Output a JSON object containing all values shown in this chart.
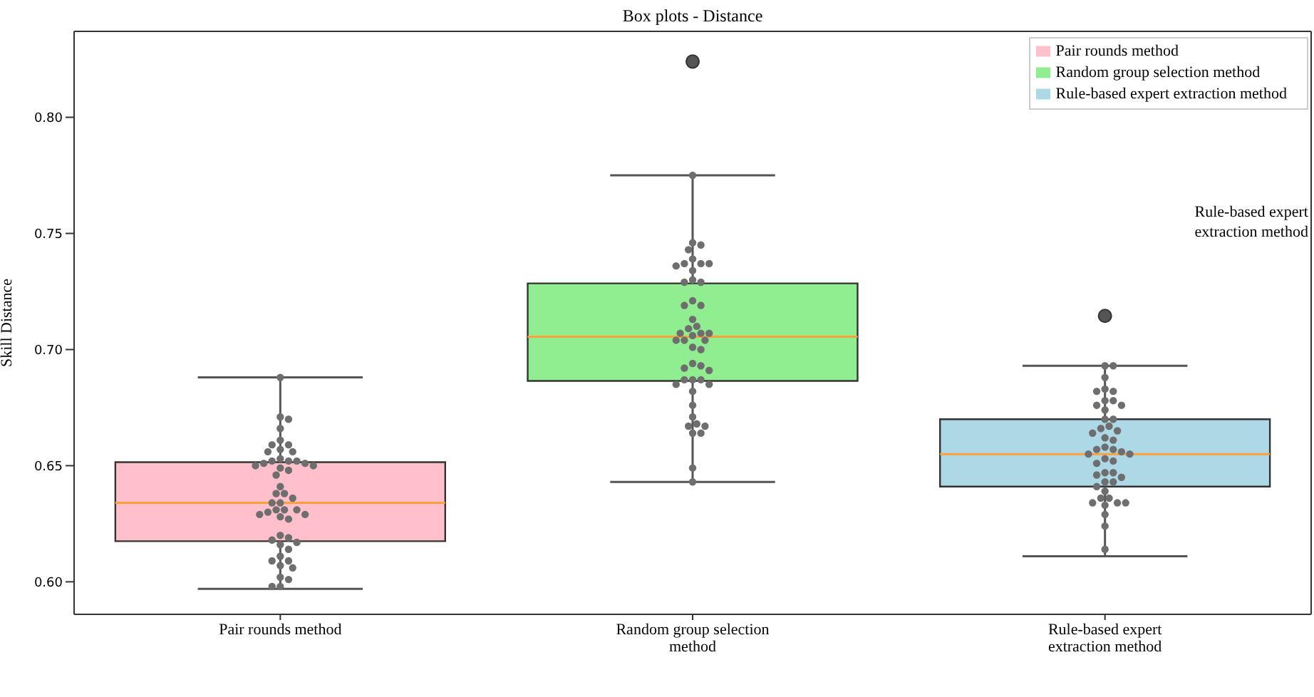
{
  "chart_data": {
    "type": "box",
    "title": "Box plots - Distance",
    "ylabel": "Skill Distance",
    "categories": [
      "Pair rounds method",
      "Random group selection method",
      "Rule-based expert extraction method"
    ],
    "series": [
      {
        "type": "box",
        "name": "Pair rounds method",
        "color": "#ffc0cb",
        "boxes": [
          {
            "low": 0.597,
            "q1": 0.6175,
            "median": 0.634,
            "q3": 0.6515,
            "high": 0.688
          },
          null,
          null
        ]
      },
      {
        "type": "box",
        "name": "Random group selection method",
        "color": "#90ee90",
        "boxes": [
          null,
          {
            "low": 0.643,
            "q1": 0.6865,
            "median": 0.7055,
            "q3": 0.7285,
            "high": 0.775,
            "outliers": [
              0.824
            ]
          },
          null
        ]
      },
      {
        "type": "box",
        "name": "Rule-based expert extraction method",
        "color": "#add8e6",
        "boxes": [
          null,
          null,
          {
            "low": 0.611,
            "q1": 0.641,
            "median": 0.655,
            "q3": 0.67,
            "high": 0.693,
            "outliers": [
              0.7145
            ]
          }
        ]
      },
      {
        "type": "scatter",
        "color": "#6e6e6e",
        "x": [
          "Pair rounds method",
          "Pair rounds method",
          "Pair rounds method",
          "Pair rounds method",
          "Pair rounds method",
          "Pair rounds method",
          "Pair rounds method",
          "Pair rounds method",
          "Pair rounds method",
          "Pair rounds method",
          "Pair rounds method",
          "Pair rounds method",
          "Pair rounds method",
          "Pair rounds method",
          "Pair rounds method",
          "Pair rounds method",
          "Pair rounds method",
          "Pair rounds method",
          "Pair rounds method",
          "Pair rounds method",
          "Pair rounds method",
          "Pair rounds method",
          "Pair rounds method",
          "Pair rounds method",
          "Pair rounds method",
          "Pair rounds method",
          "Pair rounds method",
          "Pair rounds method",
          "Pair rounds method",
          "Pair rounds method",
          "Pair rounds method",
          "Pair rounds method",
          "Pair rounds method",
          "Pair rounds method",
          "Pair rounds method",
          "Pair rounds method",
          "Pair rounds method",
          "Pair rounds method",
          "Pair rounds method",
          "Pair rounds method",
          "Pair rounds method",
          "Pair rounds method",
          "Pair rounds method",
          "Pair rounds method",
          "Pair rounds method",
          "Pair rounds method",
          "Pair rounds method",
          "Pair rounds method",
          "Pair rounds method",
          "Pair rounds method"
        ],
        "values": [
          0.688,
          0.671,
          0.67,
          0.666,
          0.661,
          0.659,
          0.659,
          0.657,
          0.656,
          0.656,
          0.653,
          0.652,
          0.652,
          0.652,
          0.651,
          0.651,
          0.65,
          0.65,
          0.649,
          0.648,
          0.646,
          0.641,
          0.638,
          0.638,
          0.636,
          0.634,
          0.634,
          0.631,
          0.631,
          0.631,
          0.63,
          0.629,
          0.629,
          0.628,
          0.627,
          0.62,
          0.619,
          0.618,
          0.617,
          0.616,
          0.614,
          0.611,
          0.609,
          0.609,
          0.607,
          0.606,
          0.602,
          0.601,
          0.598,
          0.598
        ]
      },
      {
        "type": "scatter",
        "color": "#6e6e6e",
        "x": [
          "Random group selection method",
          "Random group selection method",
          "Random group selection method",
          "Random group selection method",
          "Random group selection method",
          "Random group selection method",
          "Random group selection method",
          "Random group selection method",
          "Random group selection method",
          "Random group selection method",
          "Random group selection method",
          "Random group selection method",
          "Random group selection method",
          "Random group selection method",
          "Random group selection method",
          "Random group selection method",
          "Random group selection method",
          "Random group selection method",
          "Random group selection method",
          "Random group selection method",
          "Random group selection method",
          "Random group selection method",
          "Random group selection method",
          "Random group selection method",
          "Random group selection method",
          "Random group selection method",
          "Random group selection method",
          "Random group selection method",
          "Random group selection method",
          "Random group selection method",
          "Random group selection method",
          "Random group selection method",
          "Random group selection method",
          "Random group selection method",
          "Random group selection method",
          "Random group selection method",
          "Random group selection method",
          "Random group selection method",
          "Random group selection method",
          "Random group selection method",
          "Random group selection method",
          "Random group selection method",
          "Random group selection method",
          "Random group selection method",
          "Random group selection method",
          "Random group selection method",
          "Random group selection method"
        ],
        "values": [
          0.775,
          0.746,
          0.745,
          0.743,
          0.739,
          0.737,
          0.737,
          0.737,
          0.736,
          0.734,
          0.73,
          0.729,
          0.729,
          0.721,
          0.719,
          0.719,
          0.713,
          0.71,
          0.709,
          0.707,
          0.707,
          0.707,
          0.706,
          0.704,
          0.704,
          0.704,
          0.701,
          0.7,
          0.694,
          0.693,
          0.692,
          0.691,
          0.687,
          0.687,
          0.687,
          0.685,
          0.685,
          0.682,
          0.676,
          0.671,
          0.668,
          0.667,
          0.667,
          0.664,
          0.664,
          0.649,
          0.643
        ]
      },
      {
        "type": "scatter",
        "color": "#6e6e6e",
        "x": [
          "Rule-based expert extraction method",
          "Rule-based expert extraction method",
          "Rule-based expert extraction method",
          "Rule-based expert extraction method",
          "Rule-based expert extraction method",
          "Rule-based expert extraction method",
          "Rule-based expert extraction method",
          "Rule-based expert extraction method",
          "Rule-based expert extraction method",
          "Rule-based expert extraction method",
          "Rule-based expert extraction method",
          "Rule-based expert extraction method",
          "Rule-based expert extraction method",
          "Rule-based expert extraction method",
          "Rule-based expert extraction method",
          "Rule-based expert extraction method",
          "Rule-based expert extraction method",
          "Rule-based expert extraction method",
          "Rule-based expert extraction method",
          "Rule-based expert extraction method",
          "Rule-based expert extraction method",
          "Rule-based expert extraction method",
          "Rule-based expert extraction method",
          "Rule-based expert extraction method",
          "Rule-based expert extraction method",
          "Rule-based expert extraction method",
          "Rule-based expert extraction method",
          "Rule-based expert extraction method",
          "Rule-based expert extraction method",
          "Rule-based expert extraction method",
          "Rule-based expert extraction method",
          "Rule-based expert extraction method",
          "Rule-based expert extraction method",
          "Rule-based expert extraction method",
          "Rule-based expert extraction method",
          "Rule-based expert extraction method",
          "Rule-based expert extraction method",
          "Rule-based expert extraction method",
          "Rule-based expert extraction method",
          "Rule-based expert extraction method",
          "Rule-based expert extraction method",
          "Rule-based expert extraction method",
          "Rule-based expert extraction method",
          "Rule-based expert extraction method",
          "Rule-based expert extraction method"
        ],
        "values": [
          0.693,
          0.693,
          0.688,
          0.683,
          0.682,
          0.682,
          0.678,
          0.678,
          0.676,
          0.676,
          0.674,
          0.67,
          0.67,
          0.667,
          0.666,
          0.665,
          0.664,
          0.662,
          0.661,
          0.658,
          0.657,
          0.657,
          0.656,
          0.655,
          0.655,
          0.653,
          0.652,
          0.651,
          0.647,
          0.647,
          0.646,
          0.645,
          0.643,
          0.643,
          0.641,
          0.639,
          0.636,
          0.636,
          0.634,
          0.634,
          0.634,
          0.633,
          0.629,
          0.624,
          0.614
        ]
      }
    ],
    "ylim": [
      0.586,
      0.837
    ],
    "yticks": [
      {
        "value": 0.6,
        "label": "0.60"
      },
      {
        "value": 0.65,
        "label": "0.65"
      },
      {
        "value": 0.7,
        "label": "0.70"
      },
      {
        "value": 0.75,
        "label": "0.75"
      },
      {
        "value": 0.8,
        "label": "0.80"
      }
    ],
    "legend": "top right",
    "annotations": [
      "Rule-based  expert\nextraction method"
    ]
  }
}
